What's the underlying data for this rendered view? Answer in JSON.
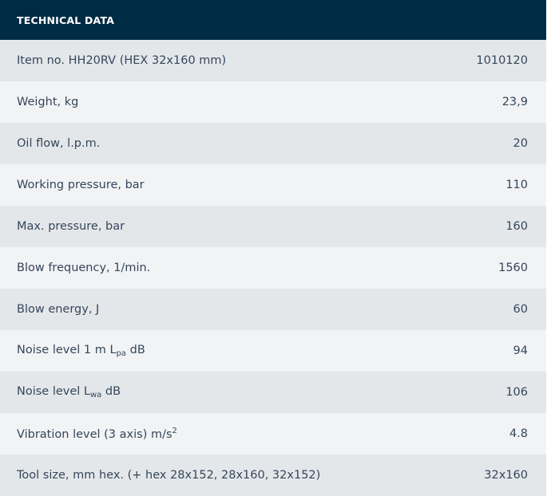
{
  "title": "TECHNICAL DATA",
  "rows": [
    {
      "label": "Item no. HH20RV (HEX 32x160 mm)",
      "value": "1010120"
    },
    {
      "label": "Weight, kg",
      "value": "23,9"
    },
    {
      "label": "Oil flow, l.p.m.",
      "value": "20"
    },
    {
      "label": "Working pressure, bar",
      "value": "110"
    },
    {
      "label": "Max. pressure, bar",
      "value": "160"
    },
    {
      "label": "Blow frequency, 1/min.",
      "value": "1560"
    },
    {
      "label": "Blow energy, J",
      "value": "60"
    },
    {
      "label": "Noise level 1 m L",
      "sub": "pa",
      "suffix": " dB",
      "value": "94"
    },
    {
      "label": "Noise level L",
      "sub": "wa",
      "suffix": " dB",
      "value": "106"
    },
    {
      "label": "Vibration level (3 axis) m/s",
      "sup": "2",
      "value": "4.8"
    },
    {
      "label": "Tool size, mm hex. (+ hex 28x152, 28x160, 32x152)",
      "value": "32x160"
    }
  ]
}
